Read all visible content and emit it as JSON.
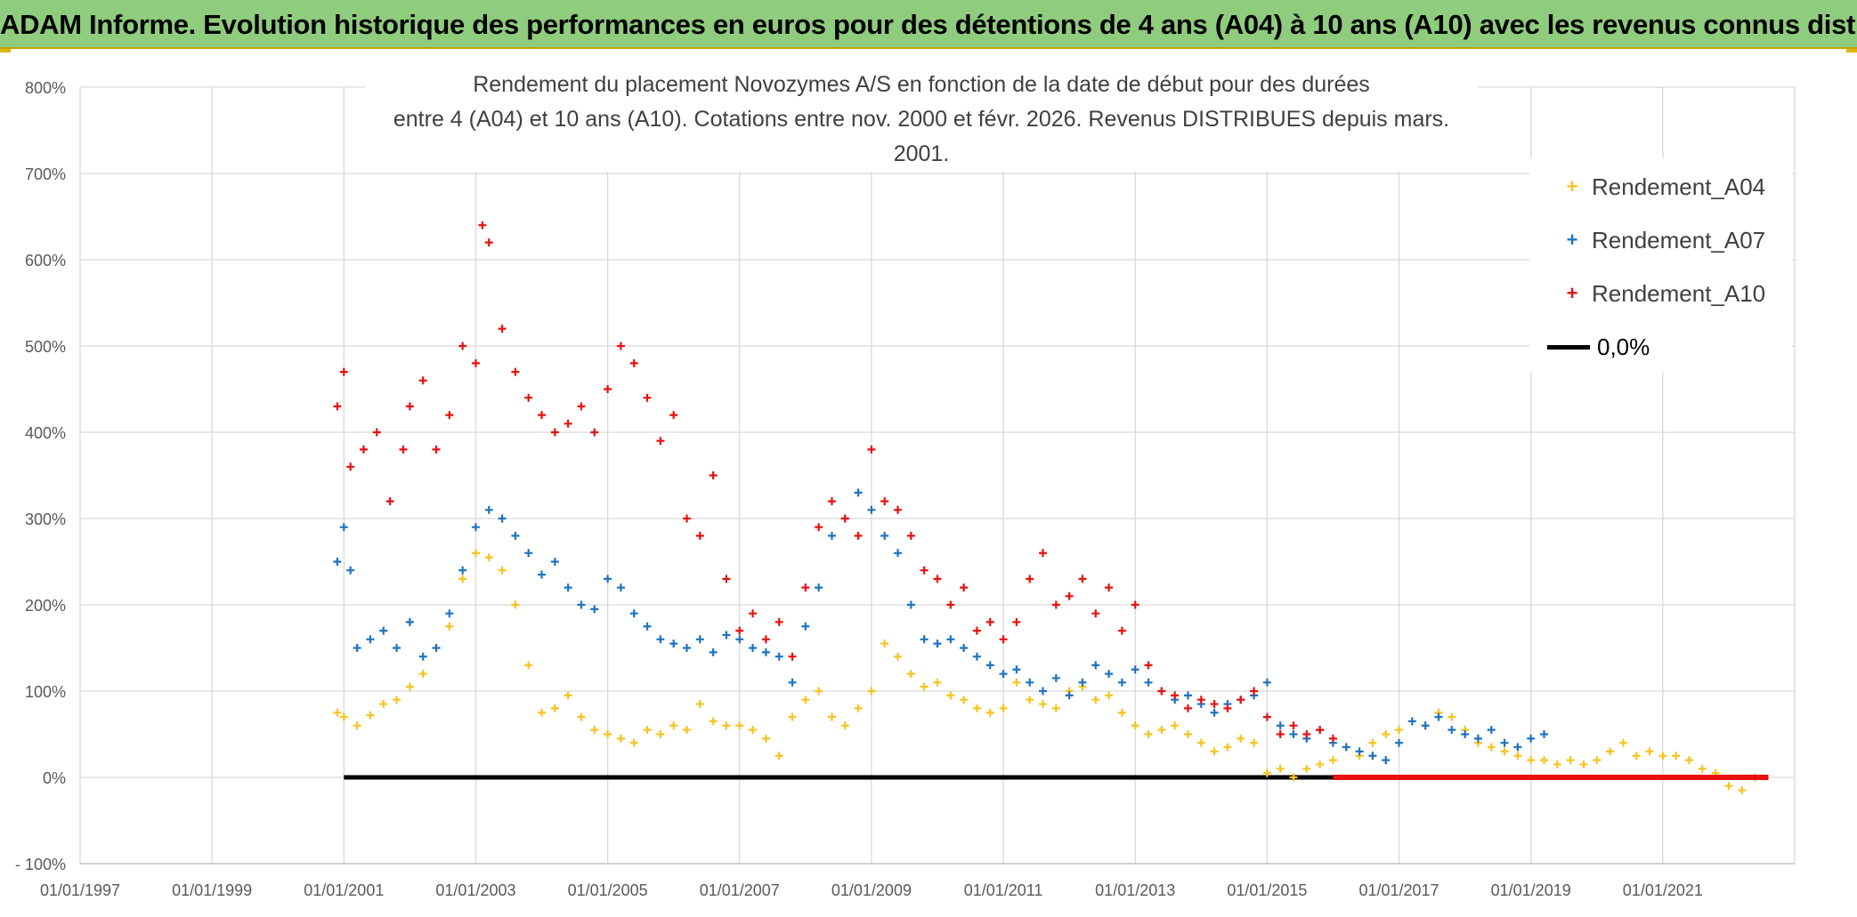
{
  "banner": {
    "title": "ADAM Informe. Evolution historique des performances en euros pour des détentions de 4 ans (A04) à 10 ans (A10) avec les revenus connus distribués"
  },
  "colors": {
    "banner_bg": "#8fcc7d",
    "a04": "#f7c41f",
    "a07": "#1f73c0",
    "a10": "#e81010",
    "zero": "#000000",
    "grid": "#d9d9d9"
  },
  "chart_data": {
    "type": "scatter",
    "title_line1": "Rendement du placement Novozymes A/S en fonction de la date de début pour des durées",
    "title_line2": "entre 4 (A04) et 10 ans (A10). Cotations entre nov. 2000 et févr. 2026. Revenus DISTRIBUES depuis mars. 2001.",
    "xlabel": "",
    "ylabel": "",
    "x_range": [
      1997.0,
      2023.0
    ],
    "ylim": [
      -100,
      800
    ],
    "y_ticks": [
      -100,
      0,
      100,
      200,
      300,
      400,
      500,
      600,
      700,
      800
    ],
    "y_tick_labels": [
      "- 100%",
      "0%",
      "100%",
      "200%",
      "300%",
      "400%",
      "500%",
      "600%",
      "700%",
      "800%"
    ],
    "x_ticks": [
      1997,
      1999,
      2001,
      2003,
      2005,
      2007,
      2009,
      2011,
      2013,
      2015,
      2017,
      2019,
      2021
    ],
    "x_tick_labels": [
      "01/01/1997",
      "01/01/1999",
      "01/01/2001",
      "01/01/2003",
      "01/01/2005",
      "01/01/2007",
      "01/01/2009",
      "01/01/2011",
      "01/01/2013",
      "01/01/2015",
      "01/01/2017",
      "01/01/2019",
      "01/01/2021"
    ],
    "legend_position": "top-right",
    "series": [
      {
        "name": "Rendement_A04",
        "marker": "+",
        "x": [
          2000.9,
          2001.0,
          2001.2,
          2001.4,
          2001.6,
          2001.8,
          2002.0,
          2002.2,
          2002.4,
          2002.6,
          2002.8,
          2003.0,
          2003.2,
          2003.4,
          2003.6,
          2003.8,
          2004.0,
          2004.2,
          2004.4,
          2004.6,
          2004.8,
          2005.0,
          2005.2,
          2005.4,
          2005.6,
          2005.8,
          2006.0,
          2006.2,
          2006.4,
          2006.6,
          2006.8,
          2007.0,
          2007.2,
          2007.4,
          2007.6,
          2007.8,
          2008.0,
          2008.2,
          2008.4,
          2008.6,
          2008.8,
          2009.0,
          2009.2,
          2009.4,
          2009.6,
          2009.8,
          2010.0,
          2010.2,
          2010.4,
          2010.6,
          2010.8,
          2011.0,
          2011.2,
          2011.4,
          2011.6,
          2011.8,
          2012.0,
          2012.2,
          2012.4,
          2012.6,
          2012.8,
          2013.0,
          2013.2,
          2013.4,
          2013.6,
          2013.8,
          2014.0,
          2014.2,
          2014.4,
          2014.6,
          2014.8,
          2015.0,
          2015.2,
          2015.4,
          2015.6,
          2015.8,
          2016.0,
          2016.2,
          2016.4,
          2016.6,
          2016.8,
          2017.0,
          2017.2,
          2017.4,
          2017.6,
          2017.8,
          2018.0,
          2018.2,
          2018.4,
          2018.6,
          2018.8,
          2019.0,
          2019.2,
          2019.4,
          2019.6,
          2019.8,
          2020.0,
          2020.2,
          2020.4,
          2020.6,
          2020.8,
          2021.0,
          2021.2,
          2021.4,
          2021.6,
          2021.8,
          2022.0,
          2022.2,
          2022.4
        ],
        "y": [
          75,
          70,
          60,
          72,
          85,
          90,
          105,
          120,
          150,
          175,
          230,
          260,
          255,
          240,
          200,
          130,
          75,
          80,
          95,
          70,
          55,
          50,
          45,
          40,
          55,
          50,
          60,
          55,
          85,
          65,
          60,
          60,
          55,
          45,
          25,
          70,
          90,
          100,
          70,
          60,
          80,
          100,
          155,
          140,
          120,
          105,
          110,
          95,
          90,
          80,
          75,
          80,
          110,
          90,
          85,
          80,
          100,
          105,
          90,
          95,
          75,
          60,
          50,
          55,
          60,
          50,
          40,
          30,
          35,
          45,
          40,
          5,
          10,
          0,
          10,
          15,
          20,
          35,
          25,
          40,
          50,
          55,
          65,
          60,
          75,
          70,
          55,
          40,
          35,
          30,
          25,
          20,
          20,
          15,
          20,
          15,
          20,
          30,
          40,
          25,
          30,
          25,
          25,
          20,
          10,
          5,
          -10,
          -15,
          0
        ]
      },
      {
        "name": "Rendement_A07",
        "marker": "+",
        "x": [
          2000.9,
          2001.0,
          2001.1,
          2001.2,
          2001.4,
          2001.6,
          2001.8,
          2002.0,
          2002.2,
          2002.4,
          2002.6,
          2002.8,
          2003.0,
          2003.2,
          2003.4,
          2003.6,
          2003.8,
          2004.0,
          2004.2,
          2004.4,
          2004.6,
          2004.8,
          2005.0,
          2005.2,
          2005.4,
          2005.6,
          2005.8,
          2006.0,
          2006.2,
          2006.4,
          2006.6,
          2006.8,
          2007.0,
          2007.2,
          2007.4,
          2007.6,
          2007.8,
          2008.0,
          2008.2,
          2008.4,
          2008.6,
          2008.8,
          2009.0,
          2009.2,
          2009.4,
          2009.6,
          2009.8,
          2010.0,
          2010.2,
          2010.4,
          2010.6,
          2010.8,
          2011.0,
          2011.2,
          2011.4,
          2011.6,
          2011.8,
          2012.0,
          2012.2,
          2012.4,
          2012.6,
          2012.8,
          2013.0,
          2013.2,
          2013.4,
          2013.6,
          2013.8,
          2014.0,
          2014.2,
          2014.4,
          2014.6,
          2014.8,
          2015.0,
          2015.2,
          2015.4,
          2015.6,
          2015.8,
          2016.0,
          2016.2,
          2016.4,
          2016.6,
          2016.8,
          2017.0,
          2017.2,
          2017.4,
          2017.6,
          2017.8,
          2018.0,
          2018.2,
          2018.4,
          2018.6,
          2018.8,
          2019.0,
          2019.2
        ],
        "y": [
          250,
          290,
          240,
          150,
          160,
          170,
          150,
          180,
          140,
          150,
          190,
          240,
          290,
          310,
          300,
          280,
          260,
          235,
          250,
          220,
          200,
          195,
          230,
          220,
          190,
          175,
          160,
          155,
          150,
          160,
          145,
          165,
          160,
          150,
          145,
          140,
          110,
          175,
          220,
          280,
          300,
          330,
          310,
          280,
          260,
          200,
          160,
          155,
          160,
          150,
          140,
          130,
          120,
          125,
          110,
          100,
          115,
          95,
          110,
          130,
          120,
          110,
          125,
          110,
          100,
          90,
          95,
          85,
          75,
          85,
          90,
          95,
          110,
          60,
          50,
          45,
          55,
          40,
          35,
          30,
          25,
          20,
          40,
          65,
          60,
          70,
          55,
          50,
          45,
          55,
          40,
          35,
          45,
          50
        ]
      },
      {
        "name": "Rendement_A10",
        "marker": "+",
        "x": [
          2000.9,
          2001.0,
          2001.1,
          2001.3,
          2001.5,
          2001.7,
          2001.9,
          2002.0,
          2002.2,
          2002.4,
          2002.6,
          2002.8,
          2003.0,
          2003.1,
          2003.2,
          2003.4,
          2003.6,
          2003.8,
          2004.0,
          2004.2,
          2004.4,
          2004.6,
          2004.8,
          2005.0,
          2005.2,
          2005.4,
          2005.6,
          2005.8,
          2006.0,
          2006.2,
          2006.4,
          2006.6,
          2006.8,
          2007.0,
          2007.2,
          2007.4,
          2007.6,
          2007.8,
          2008.0,
          2008.2,
          2008.4,
          2008.6,
          2008.8,
          2009.0,
          2009.2,
          2009.4,
          2009.6,
          2009.8,
          2010.0,
          2010.2,
          2010.4,
          2010.6,
          2010.8,
          2011.0,
          2011.2,
          2011.4,
          2011.6,
          2011.8,
          2012.0,
          2012.2,
          2012.4,
          2012.6,
          2012.8,
          2013.0,
          2013.2,
          2013.4,
          2013.6,
          2013.8,
          2014.0,
          2014.2,
          2014.4,
          2014.6,
          2014.8,
          2015.0,
          2015.2,
          2015.4,
          2015.6,
          2015.8,
          2016.0
        ],
        "y": [
          430,
          470,
          360,
          380,
          400,
          320,
          380,
          430,
          460,
          380,
          420,
          500,
          480,
          640,
          620,
          520,
          470,
          440,
          420,
          400,
          410,
          430,
          400,
          450,
          500,
          480,
          440,
          390,
          420,
          300,
          280,
          350,
          230,
          170,
          190,
          160,
          180,
          140,
          220,
          290,
          320,
          300,
          280,
          380,
          320,
          310,
          280,
          240,
          230,
          200,
          220,
          170,
          180,
          160,
          180,
          230,
          260,
          200,
          210,
          230,
          190,
          220,
          170,
          200,
          130,
          100,
          95,
          80,
          90,
          85,
          80,
          90,
          100,
          70,
          50,
          60,
          50,
          55,
          45
        ]
      },
      {
        "name": "0,0%",
        "type": "line",
        "x": [
          2001.0,
          2022.6
        ],
        "y": [
          0,
          0
        ]
      }
    ]
  }
}
